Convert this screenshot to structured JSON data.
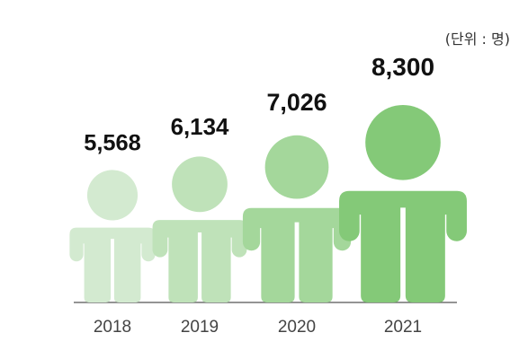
{
  "unit_label": "(단위 : 명)",
  "colors": {
    "bars": [
      "#d3ead0",
      "#bfe2b9",
      "#a4d79b",
      "#84c978"
    ],
    "baseline": "#555555",
    "value_text": "#111111",
    "year_text": "#444444"
  },
  "chart_data": {
    "type": "bar",
    "mark": "person-icon",
    "categories": [
      "2018",
      "2019",
      "2020",
      "2021"
    ],
    "values": [
      5568,
      6134,
      7026,
      8300
    ],
    "value_labels": [
      "5,568",
      "6,134",
      "7,026",
      "8,300"
    ],
    "ylim": [
      0,
      8300
    ],
    "grid": false,
    "legend": "none"
  }
}
